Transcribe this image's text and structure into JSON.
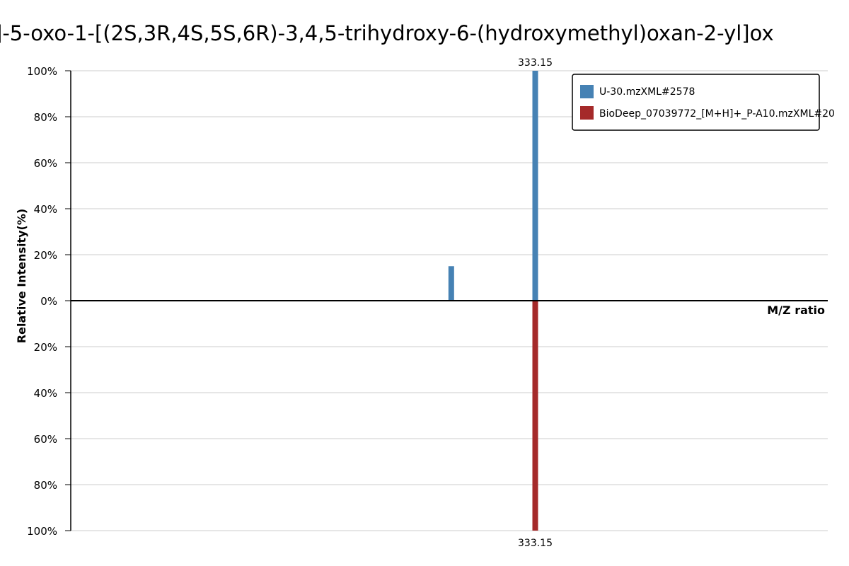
{
  "chart_data": {
    "type": "bar",
    "title": "]-5-oxo-1-[(2S,3R,4S,5S,6R)-3,4,5-trihydroxy-6-(hydroxymethyl)oxan-2-yl]ox",
    "xlabel": "M/Z ratio",
    "ylabel": "Relative Intensity(%)",
    "yticks": [
      "100%",
      "80%",
      "60%",
      "40%",
      "20%",
      "0%",
      "20%",
      "40%",
      "60%",
      "80%",
      "100%"
    ],
    "ylim": [
      -100,
      100
    ],
    "xlim": [
      100,
      480
    ],
    "grid": true,
    "legend_position": "top-right",
    "series": [
      {
        "name": "U-30.mzXML#2578",
        "color": "#4682b4",
        "direction": "up",
        "peaks": [
          {
            "mz": 291.0,
            "intensity": 15,
            "label": ""
          },
          {
            "mz": 333.15,
            "intensity": 100,
            "label": "333.15"
          }
        ]
      },
      {
        "name": "BioDeep_07039772_[M+H]+_P-A10.mzXML#20",
        "color": "#a52a2a",
        "direction": "down",
        "peaks": [
          {
            "mz": 333.15,
            "intensity": 100,
            "label": "333.15"
          }
        ]
      }
    ]
  }
}
